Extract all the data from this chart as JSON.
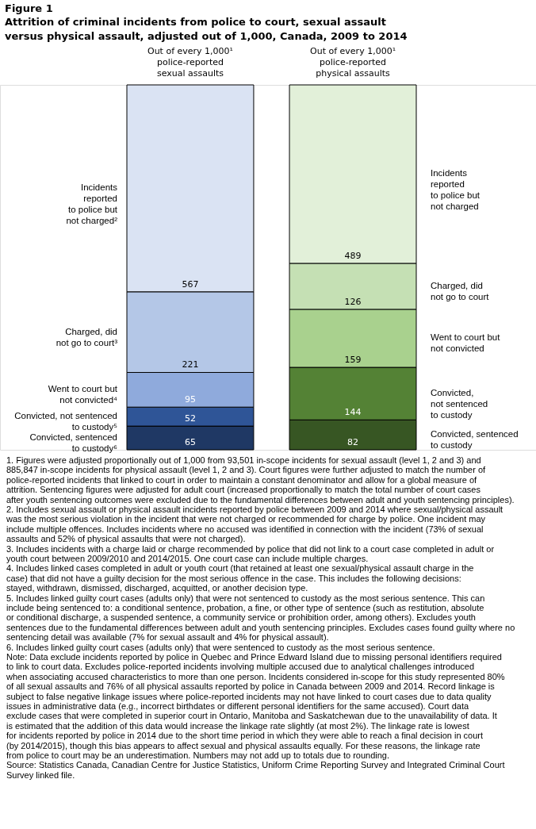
{
  "chart_data": {
    "type": "bar",
    "stacked": true,
    "data_labels": true,
    "title": "Figure 1",
    "subtitle": "Attrition of criminal incidents from police to court, sexual assault versus physical assault, adjusted out of 1,000, Canada, 2009 to 2014",
    "categories": [
      "Out of every 1,000¹\npolice-reported\nsexual assaults",
      "Out of every 1,000¹\npolice-reported\nphysical assaults"
    ],
    "series": [
      {
        "colors": [
          "#1f3864",
          "#375623"
        ],
        "values": [
          65,
          82
        ]
      },
      {
        "colors": [
          "#2f5597",
          "#548235"
        ],
        "values": [
          52,
          144
        ]
      },
      {
        "colors": [
          "#8faadc",
          "#a9d18e"
        ],
        "values": [
          95,
          159
        ]
      },
      {
        "colors": [
          "#b4c7e7",
          "#c5e0b4"
        ],
        "values": [
          221,
          126
        ]
      },
      {
        "colors": [
          "#dae3f3",
          "#e2f0d9"
        ],
        "values": [
          567,
          489
        ]
      }
    ],
    "annotations": [
      "Incidents\nreported\nto police but\nnot charged²",
      "Charged, did\nnot go to court³",
      "Went to court but\nnot convicted⁴",
      "Convicted, not sentenced\nto custody⁵",
      "Convicted, sentenced\nto custody⁶",
      "Incidents\nreported\nto police but\nnot charged",
      "Charged, did\nnot go to court",
      "Went to court but\nnot convicted",
      "Convicted,\nnot sentenced\nto custody",
      "Convicted, sentenced\nto custody",
      "1. Figures were adjusted proportionally out of 1,000 from 93,501 in-scope incidents for sexual assault (level 1, 2 and 3) and 885,847 in-scope incidents for physical assault (level 1, 2 and 3). Court figures were further adjusted to match the number of police-reported incidents that linked to court in order to maintain a constant denominator and allow for a global measure of attrition. Sentencing figures were adjusted for adult court (increased proportionally to match the total number of court cases after youth sentencing outcomes were excluded due to the fundamental differences between adult and youth sentencing principles).",
      "2. Includes sexual assault or physical assault incidents reported by police between 2009 and 2014 where sexual/physical assault was the most serious violation in the incident that were not charged or recommended for charge by police. One incident may include multiple offences. Includes incidents where no accused was identified in connection with the incident (73% of sexual assaults and 52% of physical assaults that were not charged).",
      "3. Includes incidents with a charge laid or charge recommended by police that did not link to a court case completed in adult or youth court between 2009/2010 and 2014/2015. One court case can include multiple charges.",
      "4. Includes linked cases completed in adult or youth court (that retained at least one sexual/physical assault charge in the case) that did not have a guilty decision for the most serious offence in the case. This includes the following decisions: stayed, withdrawn, dismissed, discharged, acquitted, or another decision type.",
      "5. Includes linked guilty court cases (adults only) that were not sentenced to custody as the most serious sentence. This can include being sentenced to: a conditional sentence, probation, a fine, or other type of sentence (such as restitution, absolute or conditional discharge, a suspended sentence, a community service or prohibition order, among others). Excludes youth sentences due to the fundamental differences between adult and youth sentencing principles. Excludes cases found guilty where no sentencing detail was available (7% for sexual assault and 4% for physical assault).",
      "6. Includes linked guilty court cases (adults only) that were sentenced to custody as the most serious sentence.",
      "Note: Data exclude incidents reported by police in Quebec and Prince Edward Island due to missing personal identifiers required to link to court data. Excludes police-reported incidents involving multiple accused due to analytical challenges introduced when associating accused characteristics to more than one person. Incidents considered in-scope for this study represented 80% of all sexual assaults and 76% of all physical assaults reported by police in Canada between 2009 and 2014. Record linkage is subject to false negative linkage issues where police-reported incidents may not have linked to court cases due to data quality issues in administrative data (e.g., incorrect birthdates or different personal identifiers for the same accused). Court data exclude cases that were completed in superior court in Ontario, Manitoba and Saskatchewan due to the unavailability of data. It is estimated that the addition of this data would increase the linkage rate slightly (at most 2%). The linkage rate is lowest for incidents reported by police in 2014 due to the short time period in which they were able to reach a final decision in court (by 2014/2015), though this bias appears to affect sexual and physical assaults equally. For these reasons, the linkage rate from police to court may be an underestimation. Numbers may not add up to totals due to rounding.",
      "Source: Statistics Canada, Canadian Centre for Justice Statistics, Uniform Crime Reporting Survey and Integrated Criminal Court Survey linked file."
    ]
  }
}
